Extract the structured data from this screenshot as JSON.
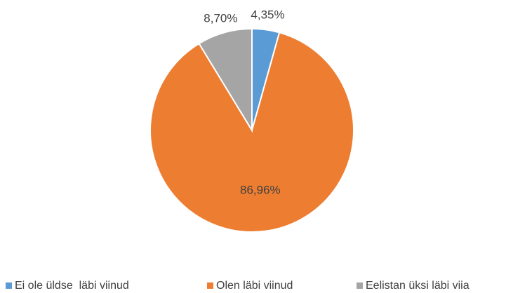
{
  "chart_data": {
    "type": "pie",
    "categories": [
      "Ei ole üldse  läbi viinud",
      "Olen läbi viinud",
      "Eelistan üksi läbi viia"
    ],
    "values": [
      4.35,
      86.96,
      8.7
    ],
    "value_labels": [
      "4,35%",
      "86,96%",
      "8,70%"
    ],
    "colors": [
      "#5b9bd5",
      "#ed7d31",
      "#a5a5a5"
    ],
    "legend": "bottom"
  }
}
